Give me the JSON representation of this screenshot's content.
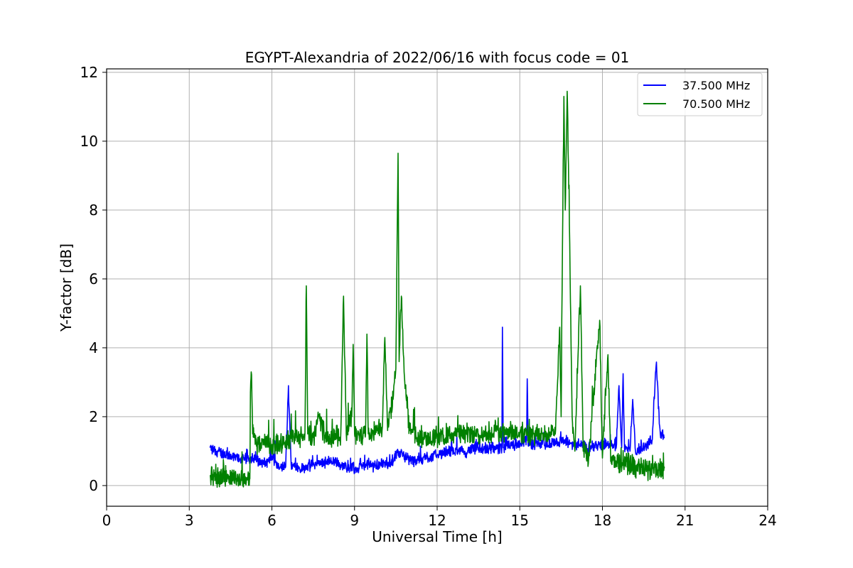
{
  "chart_data": {
    "type": "line",
    "title": "EGYPT-Alexandria of 2022/06/16 with focus code = 01",
    "xlabel": "Universal Time [h]",
    "ylabel": "Y-factor [dB]",
    "xlim": [
      0,
      24
    ],
    "ylim": [
      -0.6,
      12.1
    ],
    "xticks": [
      0,
      3,
      6,
      9,
      12,
      15,
      18,
      21,
      24
    ],
    "yticks": [
      0,
      2,
      4,
      6,
      8,
      10,
      12
    ],
    "grid": true,
    "legend_position": "upper right",
    "series": [
      {
        "name": "37.500 MHz",
        "color": "#0000ff",
        "noise": 0.35,
        "points": [
          [
            3.75,
            1.1
          ],
          [
            4.0,
            1.0
          ],
          [
            4.5,
            0.85
          ],
          [
            5.0,
            0.75
          ],
          [
            5.3,
            0.8
          ],
          [
            5.8,
            0.6
          ],
          [
            6.0,
            0.85
          ],
          [
            6.2,
            0.5
          ],
          [
            6.5,
            0.55
          ],
          [
            6.6,
            2.9
          ],
          [
            6.7,
            0.6
          ],
          [
            7.0,
            0.5
          ],
          [
            7.5,
            0.6
          ],
          [
            8.0,
            0.7
          ],
          [
            8.5,
            0.6
          ],
          [
            9.0,
            0.5
          ],
          [
            9.5,
            0.6
          ],
          [
            10.0,
            0.6
          ],
          [
            10.4,
            0.7
          ],
          [
            10.6,
            1.0
          ],
          [
            11.0,
            0.7
          ],
          [
            11.5,
            0.8
          ],
          [
            12.0,
            0.9
          ],
          [
            12.5,
            1.0
          ],
          [
            13.0,
            1.0
          ],
          [
            13.5,
            1.1
          ],
          [
            14.0,
            1.1
          ],
          [
            14.35,
            1.1
          ],
          [
            14.37,
            4.6
          ],
          [
            14.4,
            1.1
          ],
          [
            15.0,
            1.2
          ],
          [
            15.25,
            1.3
          ],
          [
            15.27,
            3.1
          ],
          [
            15.3,
            1.2
          ],
          [
            16.0,
            1.2
          ],
          [
            16.5,
            1.3
          ],
          [
            17.0,
            1.2
          ],
          [
            17.5,
            1.1
          ],
          [
            18.0,
            1.2
          ],
          [
            18.5,
            1.1
          ],
          [
            18.6,
            2.9
          ],
          [
            18.7,
            1.1
          ],
          [
            18.75,
            3.25
          ],
          [
            18.8,
            1.1
          ],
          [
            19.0,
            1.0
          ],
          [
            19.1,
            2.5
          ],
          [
            19.2,
            1.0
          ],
          [
            19.5,
            1.1
          ],
          [
            19.8,
            1.3
          ],
          [
            19.95,
            3.5
          ],
          [
            20.1,
            1.5
          ],
          [
            20.25,
            1.4
          ]
        ]
      },
      {
        "name": "70.500 MHz",
        "color": "#008000",
        "noise": 0.6,
        "points": [
          [
            3.75,
            0.3
          ],
          [
            4.5,
            0.25
          ],
          [
            5.0,
            0.2
          ],
          [
            5.2,
            0.2
          ],
          [
            5.22,
            2.7
          ],
          [
            5.25,
            3.3
          ],
          [
            5.3,
            1.5
          ],
          [
            5.5,
            1.2
          ],
          [
            5.8,
            1.3
          ],
          [
            6.0,
            1.2
          ],
          [
            6.5,
            1.3
          ],
          [
            7.0,
            1.4
          ],
          [
            7.2,
            1.5
          ],
          [
            7.25,
            5.8
          ],
          [
            7.3,
            1.5
          ],
          [
            7.5,
            1.4
          ],
          [
            7.7,
            2.0
          ],
          [
            8.0,
            1.3
          ],
          [
            8.5,
            1.5
          ],
          [
            8.6,
            5.5
          ],
          [
            8.7,
            1.5
          ],
          [
            8.9,
            2.0
          ],
          [
            8.95,
            4.1
          ],
          [
            9.0,
            1.5
          ],
          [
            9.4,
            1.5
          ],
          [
            9.45,
            4.4
          ],
          [
            9.5,
            1.5
          ],
          [
            10.0,
            1.6
          ],
          [
            10.1,
            4.3
          ],
          [
            10.2,
            1.6
          ],
          [
            10.4,
            2.5
          ],
          [
            10.5,
            3.4
          ],
          [
            10.58,
            9.65
          ],
          [
            10.62,
            3.6
          ],
          [
            10.7,
            5.5
          ],
          [
            10.8,
            3.3
          ],
          [
            11.0,
            1.6
          ],
          [
            11.5,
            1.4
          ],
          [
            12.0,
            1.4
          ],
          [
            12.5,
            1.5
          ],
          [
            13.0,
            1.5
          ],
          [
            13.5,
            1.5
          ],
          [
            14.0,
            1.5
          ],
          [
            14.5,
            1.6
          ],
          [
            15.0,
            1.5
          ],
          [
            15.5,
            1.5
          ],
          [
            16.0,
            1.5
          ],
          [
            16.3,
            1.6
          ],
          [
            16.45,
            4.6
          ],
          [
            16.5,
            2.0
          ],
          [
            16.55,
            7.0
          ],
          [
            16.6,
            11.3
          ],
          [
            16.65,
            8.0
          ],
          [
            16.72,
            11.45
          ],
          [
            16.8,
            7.6
          ],
          [
            16.9,
            2.0
          ],
          [
            17.0,
            1.0
          ],
          [
            17.2,
            5.8
          ],
          [
            17.3,
            1.0
          ],
          [
            17.5,
            0.8
          ],
          [
            17.9,
            4.8
          ],
          [
            18.0,
            0.8
          ],
          [
            18.2,
            3.8
          ],
          [
            18.3,
            0.7
          ],
          [
            18.5,
            0.7
          ],
          [
            19.0,
            0.6
          ],
          [
            19.5,
            0.5
          ],
          [
            20.0,
            0.45
          ],
          [
            20.25,
            0.5
          ]
        ]
      }
    ]
  }
}
